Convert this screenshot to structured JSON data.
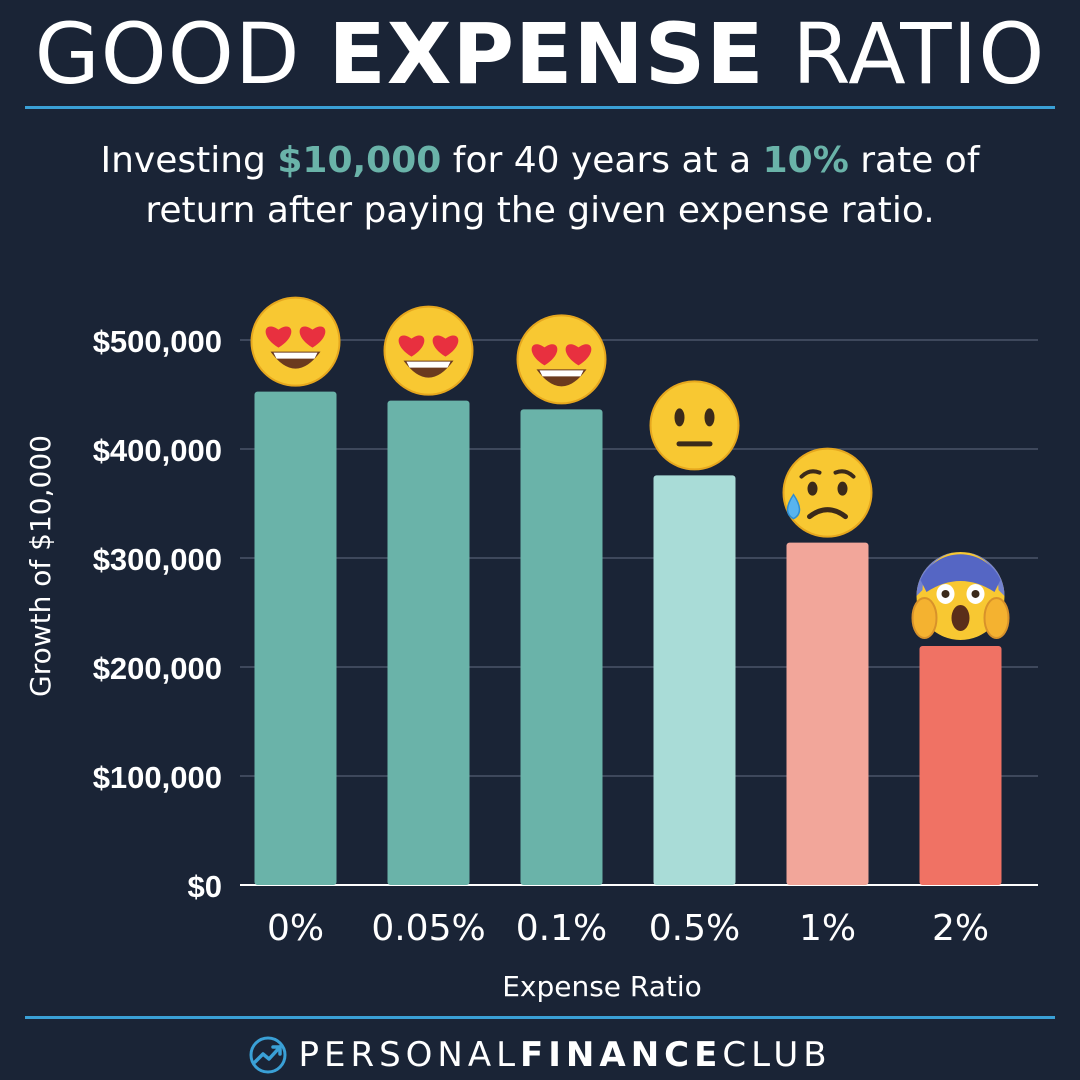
{
  "header": {
    "title_light_1": "GOOD",
    "title_bold": "EXPENSE",
    "title_light_2": "RATIO",
    "subtitle": {
      "p1": "Investing ",
      "h1": "$10,000",
      "p2": " for 40 years at a ",
      "h2": "10%",
      "p3": " rate of",
      "line2": "return after paying the given expense ratio."
    }
  },
  "chart_data": {
    "type": "bar",
    "categories": [
      "0%",
      "0.05%",
      "0.1%",
      "0.5%",
      "1%",
      "2%"
    ],
    "values": [
      452593,
      444400,
      436360,
      375811,
      314094,
      219318
    ],
    "ylim": [
      0,
      500000
    ],
    "yticks": [
      0,
      100000,
      200000,
      300000,
      400000,
      500000
    ],
    "ytick_labels": [
      "$0",
      "$100,000",
      "$200,000",
      "$300,000",
      "$400,000",
      "$500,000"
    ],
    "xlabel": "Expense Ratio",
    "ylabel": "Growth of $10,000",
    "grid": true,
    "bar_colors": [
      "#6ab3a9",
      "#6ab3a9",
      "#6ab3a9",
      "#a9dcd7",
      "#f2a69a",
      "#f07264"
    ],
    "reactions": [
      "heart-eyes",
      "heart-eyes",
      "heart-eyes",
      "neutral",
      "sad-sweat",
      "screaming"
    ]
  },
  "footer": {
    "brand_light": "PERSONAL",
    "brand_bold": "FINANCE",
    "brand_light_2": "CLUB"
  }
}
